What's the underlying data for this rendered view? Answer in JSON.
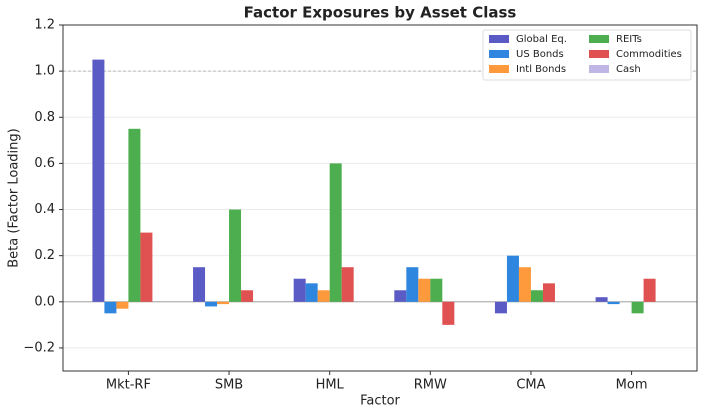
{
  "chart_data": {
    "type": "bar",
    "title": "Factor Exposures by Asset Class",
    "x_label": "Factor",
    "y_label": "Beta (Factor Loading)",
    "categories": [
      "Mkt-RF",
      "SMB",
      "HML",
      "RMW",
      "CMA",
      "Mom"
    ],
    "series": [
      {
        "name": "Global Eq.",
        "color": "#5b5bc6",
        "values": [
          1.05,
          0.15,
          0.1,
          0.05,
          -0.05,
          0.02
        ]
      },
      {
        "name": "US Bonds",
        "color": "#2e86de",
        "values": [
          -0.05,
          -0.02,
          0.08,
          0.15,
          0.2,
          -0.01
        ]
      },
      {
        "name": "Intl Bonds",
        "color": "#ff9a3c",
        "values": [
          -0.03,
          -0.01,
          0.05,
          0.1,
          0.15,
          0
        ]
      },
      {
        "name": "REITs",
        "color": "#4cae4f",
        "values": [
          0.75,
          0.4,
          0.6,
          0.1,
          0.05,
          -0.05
        ]
      },
      {
        "name": "Commodities",
        "color": "#e05252",
        "values": [
          0.3,
          0.05,
          0.15,
          -0.1,
          0.08,
          0.1
        ]
      },
      {
        "name": "Cash",
        "color": "#c0b6e6",
        "values": [
          0,
          0,
          0,
          0,
          0,
          0
        ]
      }
    ],
    "ylim": [
      -0.3,
      1.2
    ],
    "yticks": [
      {
        "value": -0.2,
        "label": "−0.2"
      },
      {
        "value": 0,
        "label": "0.0"
      },
      0.2,
      0.4,
      0.6,
      0.8,
      {
        "value": 1,
        "label": "1.0"
      },
      1.2
    ],
    "grid": true,
    "reference_lines": [
      {
        "value": 0,
        "style": "solid"
      },
      {
        "value": 1,
        "style": "dashed"
      }
    ],
    "legend": "upper-right"
  }
}
